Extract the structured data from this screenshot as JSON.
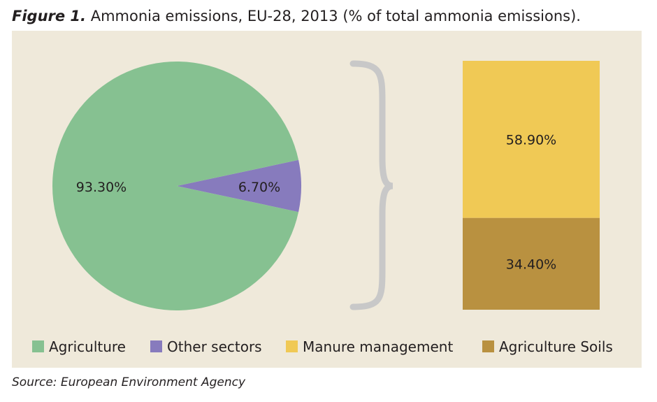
{
  "figure": {
    "number_label": "Figure 1.",
    "title": "Ammonia emissions, EU-28, 2013 (% of total ammonia emissions)."
  },
  "source": "Source: European Environment Agency",
  "colors": {
    "background": "#efe9da",
    "agriculture": "#86c191",
    "other_sectors": "#877bbd",
    "manure_management": "#f0c955",
    "agriculture_soils": "#b99140",
    "brace": "#c8c8c8"
  },
  "chart_data": [
    {
      "type": "pie",
      "slices": [
        {
          "label": "Agriculture",
          "value": 93.3,
          "data_label": "93.30%"
        },
        {
          "label": "Other sectors",
          "value": 6.7,
          "data_label": "6.70%"
        }
      ]
    },
    {
      "type": "bar",
      "stacked": true,
      "segments": [
        {
          "label": "Manure management",
          "value": 58.9,
          "data_label": "58.90%"
        },
        {
          "label": "Agriculture Soils",
          "value": 34.4,
          "data_label": "34.40%"
        }
      ]
    }
  ],
  "legend": {
    "placement": "bottom",
    "items": [
      "Agriculture",
      "Other sectors",
      "Manure management",
      "Agriculture Soils"
    ]
  }
}
